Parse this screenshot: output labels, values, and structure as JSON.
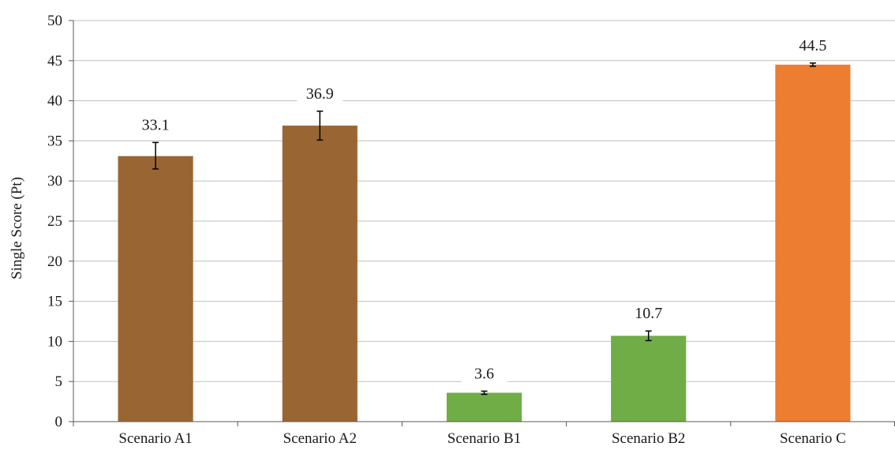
{
  "chart_data": {
    "type": "bar",
    "title": "",
    "xlabel": "",
    "ylabel": "Single Score (Pt)",
    "ylim": [
      0,
      50
    ],
    "yticks": [
      0,
      5,
      10,
      15,
      20,
      25,
      30,
      35,
      40,
      45,
      50
    ],
    "grid": true,
    "legend": "none",
    "categories": [
      "Scenario A1",
      "Scenario A2",
      "Scenario B1",
      "Scenario B2",
      "Scenario C"
    ],
    "values": [
      33.1,
      36.9,
      3.6,
      10.7,
      44.5
    ],
    "data_labels": [
      "33.1",
      "36.9",
      "3.6",
      "10.7",
      "44.5"
    ],
    "error_bars": [
      [
        31.5,
        34.8
      ],
      [
        35.1,
        38.7
      ],
      [
        3.4,
        3.8
      ],
      [
        10.1,
        11.3
      ],
      [
        44.3,
        44.7
      ]
    ],
    "colors": [
      "#996633",
      "#996633",
      "#70ad47",
      "#70ad47",
      "#ed7d31"
    ],
    "grid_color": "#bfbfbf",
    "axis_color": "#595959"
  }
}
